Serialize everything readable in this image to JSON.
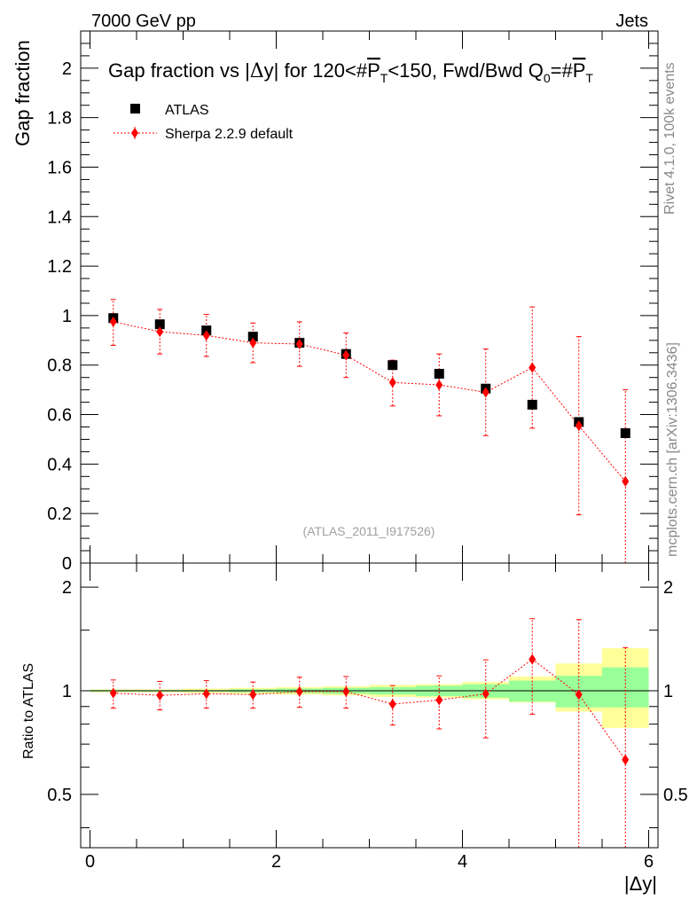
{
  "header": {
    "left_label": "7000 GeV pp",
    "right_label": "Jets"
  },
  "side_labels": {
    "rivet": "Rivet 4.1.0,  100k events",
    "mcplots": "mcplots.cern.ch [arXiv:1306.3436]"
  },
  "chart_data": [
    {
      "type": "scatter",
      "title": "Gap fraction vs |Δy| for 120<#P̅T<150, Fwd/Bwd Q0=#P̅T",
      "title_parts": {
        "a": "Gap fraction vs |",
        "b": "Δ",
        "c": "y| for 120<#",
        "d": "P",
        "e": "T",
        "f": "<150, Fwd/Bwd Q",
        "g": "0",
        "h": "=#",
        "i": "P",
        "j": "T"
      },
      "ylabel": "Gap fraction",
      "xlim": [
        -0.1,
        6.1
      ],
      "ylim": [
        0,
        2.15
      ],
      "y_ticks": [
        "0",
        "0.2",
        "0.4",
        "0.6",
        "0.8",
        "1",
        "1.2",
        "1.4",
        "1.6",
        "1.8",
        "2"
      ],
      "watermark": "(ATLAS_2011_I917526)",
      "legend": {
        "position": "top-left",
        "entries": [
          "ATLAS",
          "Sherpa 2.2.9 default"
        ]
      },
      "x": [
        0.25,
        0.75,
        1.25,
        1.75,
        2.25,
        2.75,
        3.25,
        3.75,
        4.25,
        4.75,
        5.25,
        5.75
      ],
      "series": [
        {
          "name": "ATLAS",
          "color": "#000000",
          "marker": "square",
          "values": [
            0.99,
            0.965,
            0.94,
            0.915,
            0.89,
            0.845,
            0.8,
            0.765,
            0.705,
            0.64,
            0.57,
            0.525
          ]
        },
        {
          "name": "Sherpa 2.2.9 default",
          "color": "#ff0000",
          "marker": "diamond",
          "line": "dotted",
          "values": [
            0.975,
            0.935,
            0.92,
            0.89,
            0.885,
            0.84,
            0.73,
            0.72,
            0.69,
            0.79,
            0.555,
            0.33
          ],
          "err_low": [
            0.095,
            0.09,
            0.085,
            0.08,
            0.09,
            0.09,
            0.095,
            0.125,
            0.175,
            0.245,
            0.36,
            0.35
          ],
          "err_high": [
            0.09,
            0.09,
            0.085,
            0.08,
            0.09,
            0.09,
            0.09,
            0.125,
            0.175,
            0.245,
            0.36,
            0.37
          ]
        }
      ]
    },
    {
      "type": "scatter",
      "ylabel": "Ratio to ATLAS",
      "xlabel": "|Δy|",
      "xlim": [
        -0.1,
        6.1
      ],
      "ylim": [
        0.35,
        2.35
      ],
      "y_ticks": [
        "0.5",
        "1",
        "2"
      ],
      "x_ticks": [
        "0",
        "2",
        "4",
        "6"
      ],
      "reference_line": 1,
      "x": [
        0.25,
        0.75,
        1.25,
        1.75,
        2.25,
        2.75,
        3.25,
        3.75,
        4.25,
        4.75,
        5.25,
        5.75
      ],
      "bin_edges": [
        0,
        0.5,
        1,
        1.5,
        2,
        2.5,
        3,
        3.5,
        4,
        4.5,
        5,
        5.5,
        6
      ],
      "bands": {
        "stat_color": "#99ff99",
        "total_color": "#ffff99",
        "stat_low": [
          0.995,
          0.995,
          0.995,
          0.99,
          0.985,
          0.98,
          0.975,
          0.965,
          0.955,
          0.93,
          0.895,
          0.895
        ],
        "stat_high": [
          1.005,
          1.005,
          1.005,
          1.01,
          1.015,
          1.02,
          1.025,
          1.035,
          1.045,
          1.07,
          1.105,
          1.17
        ],
        "total_low": [
          0.99,
          0.99,
          0.985,
          0.98,
          0.975,
          0.97,
          0.96,
          0.955,
          0.945,
          0.925,
          0.87,
          0.78
        ],
        "total_high": [
          1.01,
          1.01,
          1.015,
          1.02,
          1.025,
          1.03,
          1.04,
          1.045,
          1.06,
          1.1,
          1.2,
          1.33
        ]
      },
      "series": [
        {
          "name": "Sherpa 2.2.9 default",
          "color": "#ff0000",
          "values": [
            0.985,
            0.97,
            0.98,
            0.975,
            0.995,
            0.995,
            0.915,
            0.94,
            0.98,
            1.235,
            0.975,
            0.63
          ],
          "err_low": [
            0.095,
            0.09,
            0.09,
            0.085,
            0.1,
            0.105,
            0.12,
            0.165,
            0.25,
            0.38,
            0.63,
            0.67
          ],
          "err_high": [
            0.09,
            0.095,
            0.09,
            0.085,
            0.1,
            0.105,
            0.12,
            0.165,
            0.25,
            0.385,
            0.635,
            0.705
          ]
        }
      ]
    }
  ]
}
